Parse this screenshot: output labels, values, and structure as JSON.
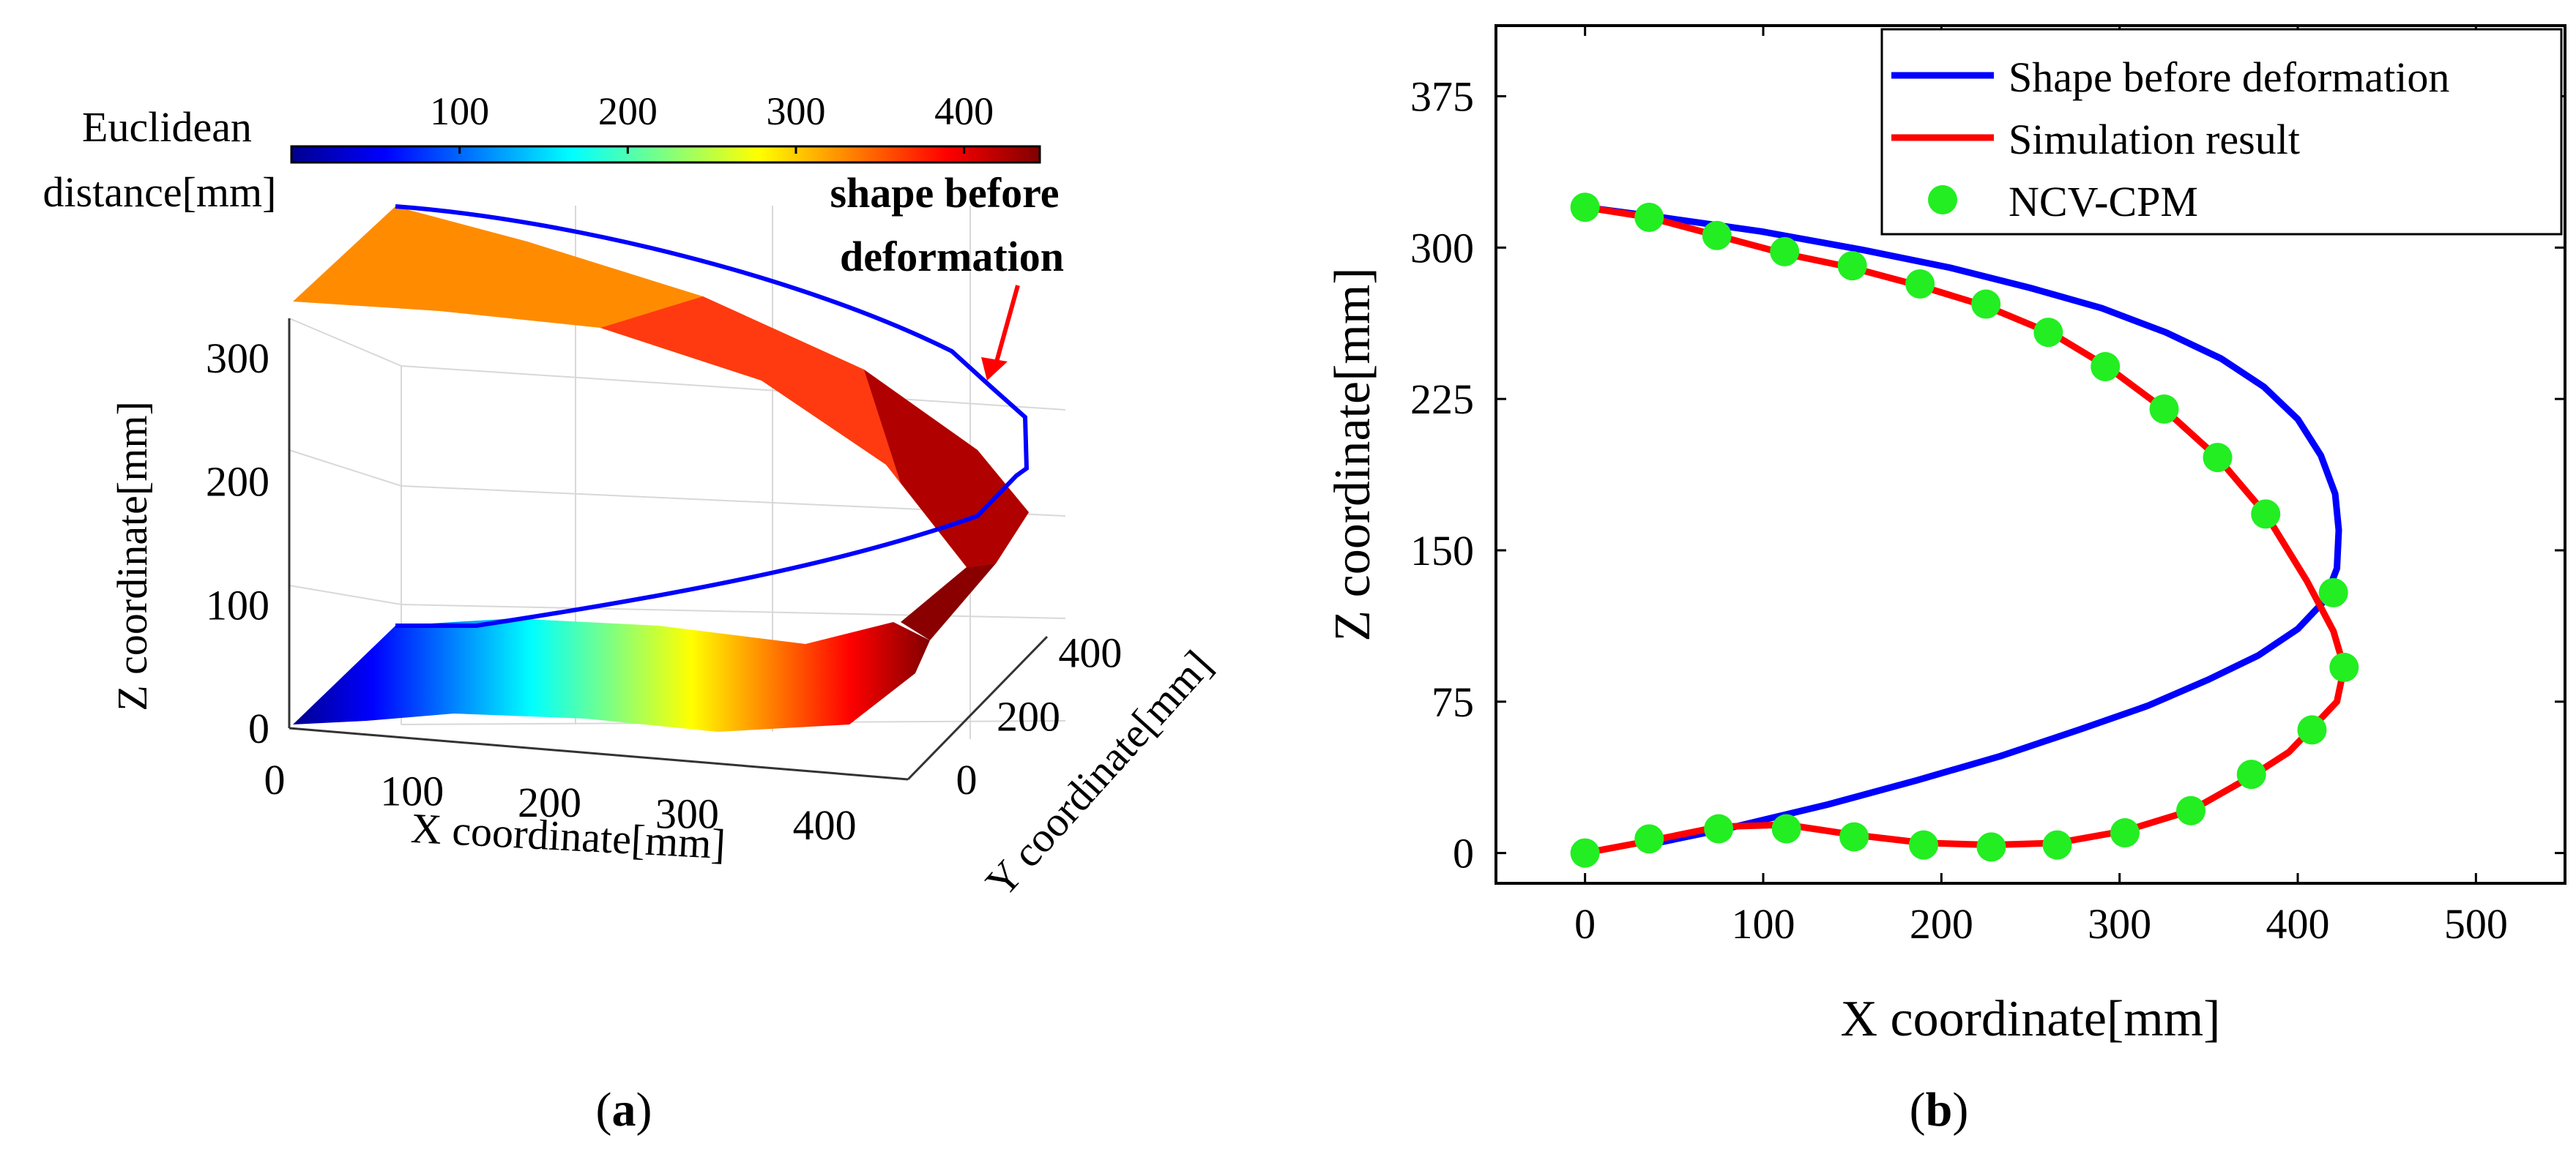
{
  "panel_a": {
    "caption_open": "(",
    "caption_letter": "a",
    "caption_close": ")",
    "colorbar": {
      "title_line1": "Euclidean",
      "title_line2": "distance[mm]",
      "ticks": [
        "100",
        "200",
        "300",
        "400"
      ],
      "tick_values": [
        100,
        200,
        300,
        400
      ],
      "range": [
        0,
        445
      ],
      "colormap": "jet"
    },
    "annotation_line1": "shape before",
    "annotation_line2": "deformation",
    "annotation_color": "#ff0000",
    "outline_color": "#0000ff"
  },
  "panel_b": {
    "caption_open": "(",
    "caption_letter": "b",
    "caption_close": ")"
  },
  "chart_data": [
    {
      "type": "surface",
      "title": "",
      "xlabel": "X coordinate[mm]",
      "ylabel": "Y coordinate[mm]",
      "zlabel": "Z coordinate[mm]",
      "x_ticks": [
        "0",
        "100",
        "200",
        "300",
        "400"
      ],
      "y_ticks": [
        "0",
        "200",
        "400"
      ],
      "z_ticks": [
        "0",
        "100",
        "200",
        "300"
      ],
      "x_tick_values": [
        0,
        100,
        200,
        300,
        400
      ],
      "y_tick_values": [
        0,
        200,
        400
      ],
      "z_tick_values": [
        0,
        100,
        200,
        300
      ],
      "xlim": [
        0,
        450
      ],
      "ylim": [
        0,
        450
      ],
      "zlim": [
        0,
        320
      ],
      "color_by": "Euclidean distance[mm]",
      "legend": "colorbar"
    },
    {
      "type": "line",
      "title": "",
      "xlabel": "X coordinate[mm]",
      "ylabel": "Z coordinate[mm]",
      "xlim": [
        -50,
        550
      ],
      "ylim": [
        -15,
        410
      ],
      "x_ticks": [
        "0",
        "100",
        "200",
        "300",
        "400",
        "500"
      ],
      "y_ticks": [
        "0",
        "75",
        "150",
        "225",
        "300",
        "375"
      ],
      "x_tick_values": [
        0,
        100,
        200,
        300,
        400,
        500
      ],
      "y_tick_values": [
        0,
        75,
        150,
        225,
        300,
        375
      ],
      "legend_position": "top-right",
      "series": [
        {
          "name": "Shape before deformation",
          "kind": "line",
          "color": "#0000ff",
          "x": [
            0,
            43,
            99,
            155,
            205,
            250,
            290,
            326,
            357,
            381,
            400,
            413,
            421,
            423,
            422,
            415,
            400,
            378,
            350,
            316,
            277,
            233,
            186,
            136,
            84,
            35
          ],
          "z": [
            320,
            315,
            308,
            299,
            290,
            280,
            270,
            258,
            245,
            231,
            215,
            197,
            178,
            160,
            141,
            125,
            111,
            98,
            86,
            73,
            61,
            48,
            36,
            24,
            13,
            4
          ]
        },
        {
          "name": "Simulation result",
          "kind": "line",
          "color": "#ff0000",
          "x": [
            0,
            36,
            74,
            112,
            150,
            188,
            225,
            263,
            293,
            325,
            355,
            382,
            405,
            420,
            426,
            422,
            408,
            395,
            374,
            340,
            303,
            265,
            228,
            190,
            151,
            113,
            75,
            36,
            0
          ],
          "z": [
            320,
            315,
            306,
            297,
            290,
            281,
            271,
            257,
            241,
            220,
            196,
            168,
            135,
            110,
            92,
            75,
            62,
            50,
            38,
            21,
            11,
            5,
            4,
            5,
            9,
            14,
            13,
            6,
            0
          ]
        },
        {
          "name": "NCV-CPM",
          "kind": "scatter",
          "color": "#22ee22",
          "x": [
            0,
            36,
            74,
            112,
            150,
            188,
            225,
            260,
            292,
            325,
            355,
            382,
            420,
            426,
            408,
            374,
            340,
            303,
            265,
            228,
            190,
            151,
            113,
            75,
            36,
            0
          ],
          "z": [
            320,
            315,
            306,
            298,
            291,
            282,
            272,
            258,
            241,
            220,
            196,
            168,
            129,
            92,
            61,
            39,
            21,
            10,
            4,
            3,
            4,
            8,
            12,
            12,
            7,
            0
          ]
        }
      ]
    }
  ]
}
